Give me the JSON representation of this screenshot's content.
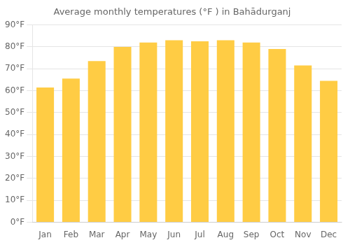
{
  "chart_data": {
    "type": "bar",
    "title": "Average monthly temperatures (°F ) in Bahādurganj",
    "categories": [
      "Jan",
      "Feb",
      "Mar",
      "Apr",
      "May",
      "Jun",
      "Jul",
      "Aug",
      "Sep",
      "Oct",
      "Nov",
      "Dec"
    ],
    "values": [
      61.5,
      65.5,
      73.5,
      80.0,
      82.0,
      83.0,
      82.5,
      83.0,
      82.0,
      79.0,
      71.5,
      64.5
    ],
    "color": "#FFCC44",
    "ylim": [
      0,
      90
    ],
    "yticks": [
      {
        "value": 0,
        "label": "0°F"
      },
      {
        "value": 10,
        "label": "10°F"
      },
      {
        "value": 20,
        "label": "20°F"
      },
      {
        "value": 30,
        "label": "30°F"
      },
      {
        "value": 40,
        "label": "40°F"
      },
      {
        "value": 50,
        "label": "50°F"
      },
      {
        "value": 60,
        "label": "60°F"
      },
      {
        "value": 70,
        "label": "70°F"
      },
      {
        "value": 80,
        "label": "80°F"
      },
      {
        "value": 90,
        "label": "90°F"
      }
    ],
    "grid": true
  }
}
